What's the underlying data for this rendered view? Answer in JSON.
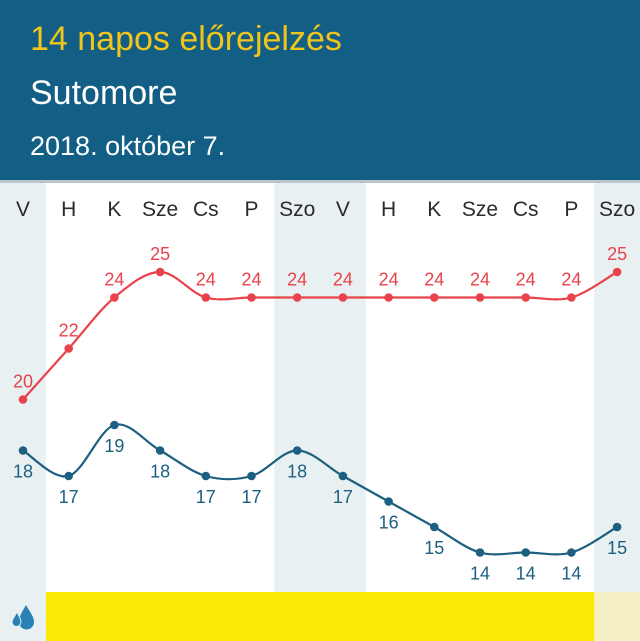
{
  "header": {
    "title": "14 napos előrejelzés",
    "city": "Sutomore",
    "date": "2018. október 7."
  },
  "icons": {
    "precipitation": "raindrops-icon"
  },
  "colors": {
    "header_bg": "#135e85",
    "title": "#f2c51a",
    "max_line": "#e8424a",
    "min_line": "#1d5f80",
    "weekend_band": "#e8f0f2",
    "precip_bar": "#fbe804",
    "precip_bar_light": "#f7efc6"
  },
  "chart_data": {
    "type": "line",
    "days": [
      "V",
      "H",
      "K",
      "Sze",
      "Cs",
      "P",
      "Szo",
      "V",
      "H",
      "K",
      "Sze",
      "Cs",
      "P",
      "Szo"
    ],
    "series": [
      {
        "values": [
          20,
          22,
          24,
          25,
          24,
          24,
          24,
          24,
          24,
          24,
          24,
          24,
          24,
          25
        ]
      },
      {
        "values": [
          18,
          17,
          19,
          18,
          17,
          17,
          18,
          17,
          16,
          15,
          14,
          14,
          14,
          15
        ]
      }
    ],
    "weekend_days": [
      0,
      6,
      7,
      13
    ],
    "precipitation_bar": [
      "light",
      "yellow",
      "yellow",
      "yellow",
      "yellow",
      "yellow",
      "yellow",
      "yellow",
      "yellow",
      "yellow",
      "yellow",
      "yellow",
      "yellow",
      "light"
    ]
  }
}
